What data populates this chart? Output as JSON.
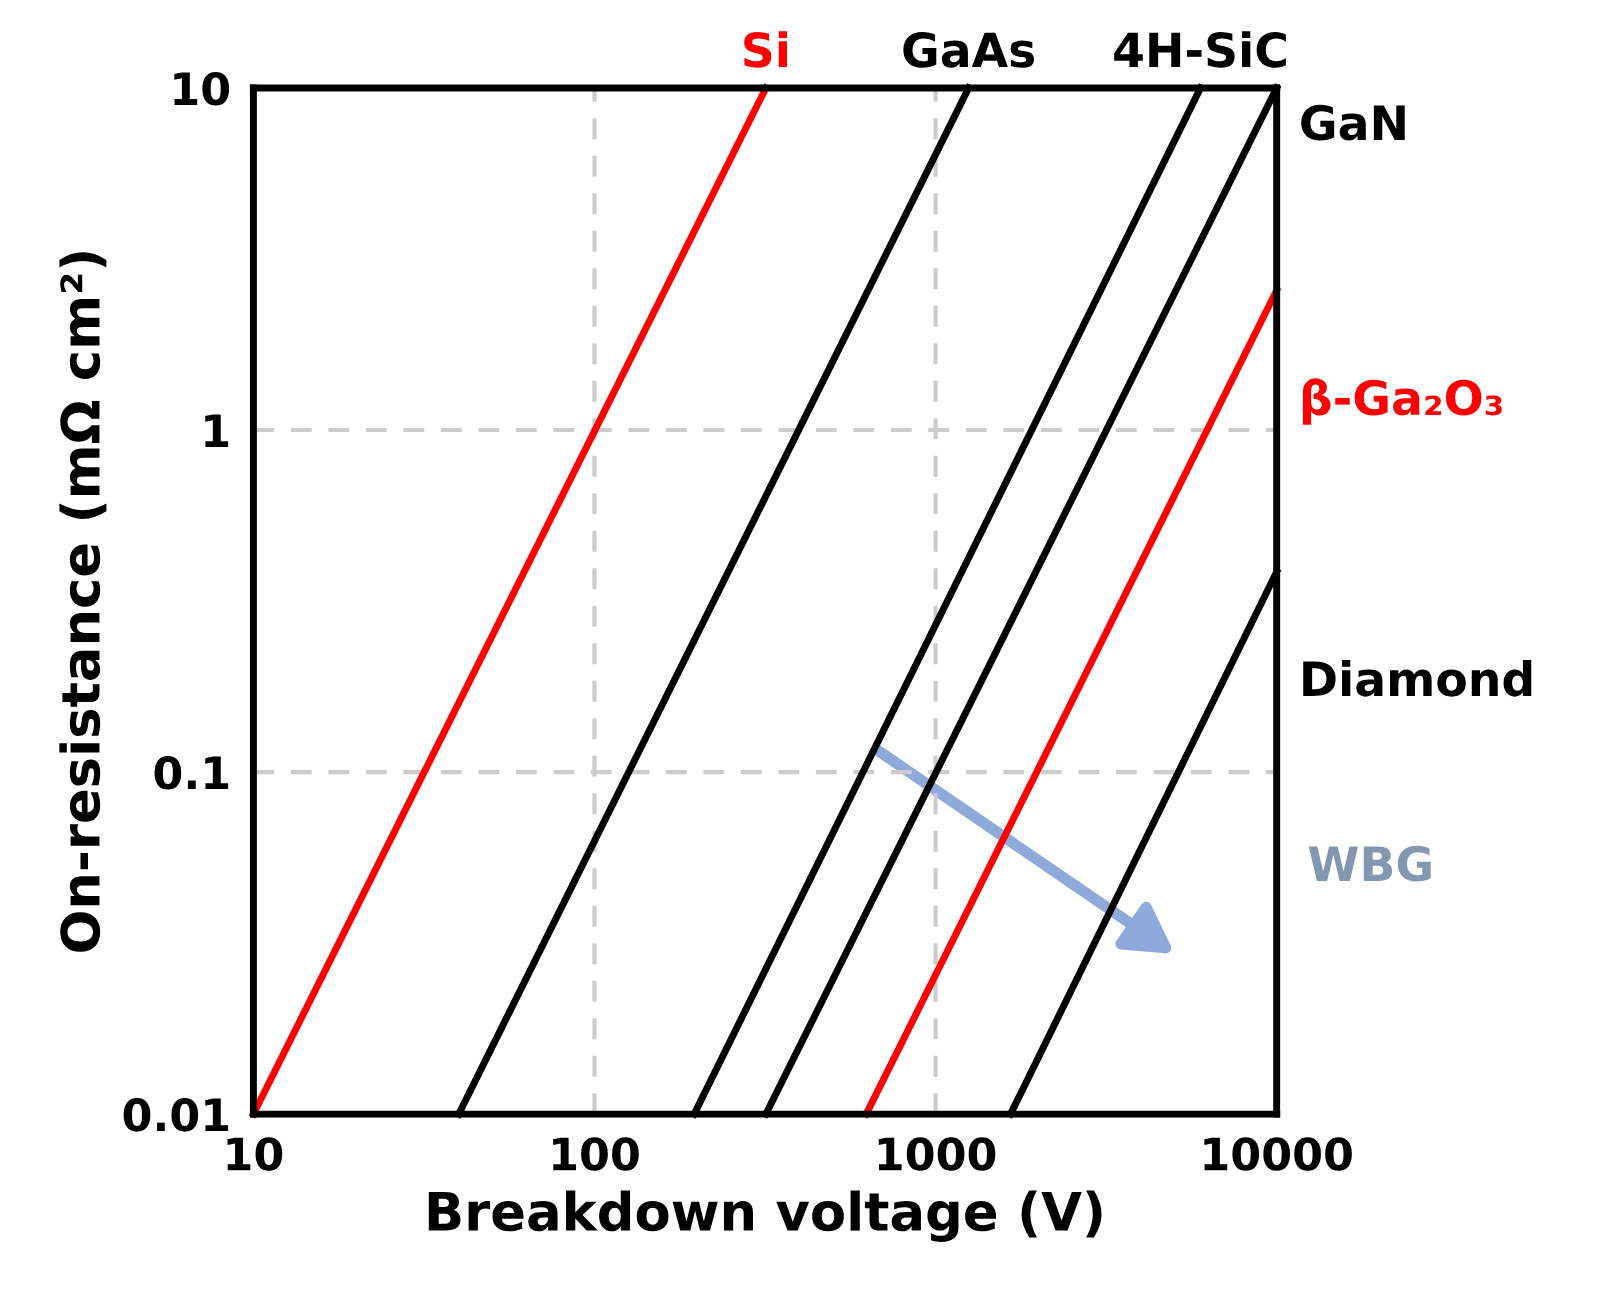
{
  "chart_data": {
    "type": "line",
    "xlabel": "Breakdown voltage (V)",
    "ylabel": "On-resistance (mΩ cm²)",
    "log": "xy",
    "xlim": [
      10,
      10000
    ],
    "ylim": [
      0.01,
      10
    ],
    "xticks": [
      10,
      100,
      1000,
      10000
    ],
    "yticks": [
      0.01,
      0.1,
      1,
      10
    ],
    "grid": true,
    "marker": "none",
    "line_style": "solid",
    "series": [
      {
        "name": "Si",
        "color": "#ff0000",
        "x": [
          10,
          318
        ],
        "values": [
          0.01,
          10
        ]
      },
      {
        "name": "GaAs",
        "color": "#000000",
        "x": [
          40,
          1250
        ],
        "values": [
          0.01,
          10
        ]
      },
      {
        "name": "4H-SiC",
        "color": "#000000",
        "x": [
          196,
          5980
        ],
        "values": [
          0.01,
          10
        ]
      },
      {
        "name": "GaN",
        "color": "#000000",
        "x": [
          318,
          10000
        ],
        "values": [
          0.01,
          10
        ]
      },
      {
        "name": "β-Ga₂O₃",
        "color": "#ff0000",
        "x": [
          626,
          10000
        ],
        "values": [
          0.01,
          2.56
        ]
      },
      {
        "name": "Diamond",
        "color": "#000000",
        "x": [
          1659,
          10000
        ],
        "values": [
          0.01,
          0.385
        ]
      }
    ],
    "annotations": [
      "WBG"
    ]
  }
}
